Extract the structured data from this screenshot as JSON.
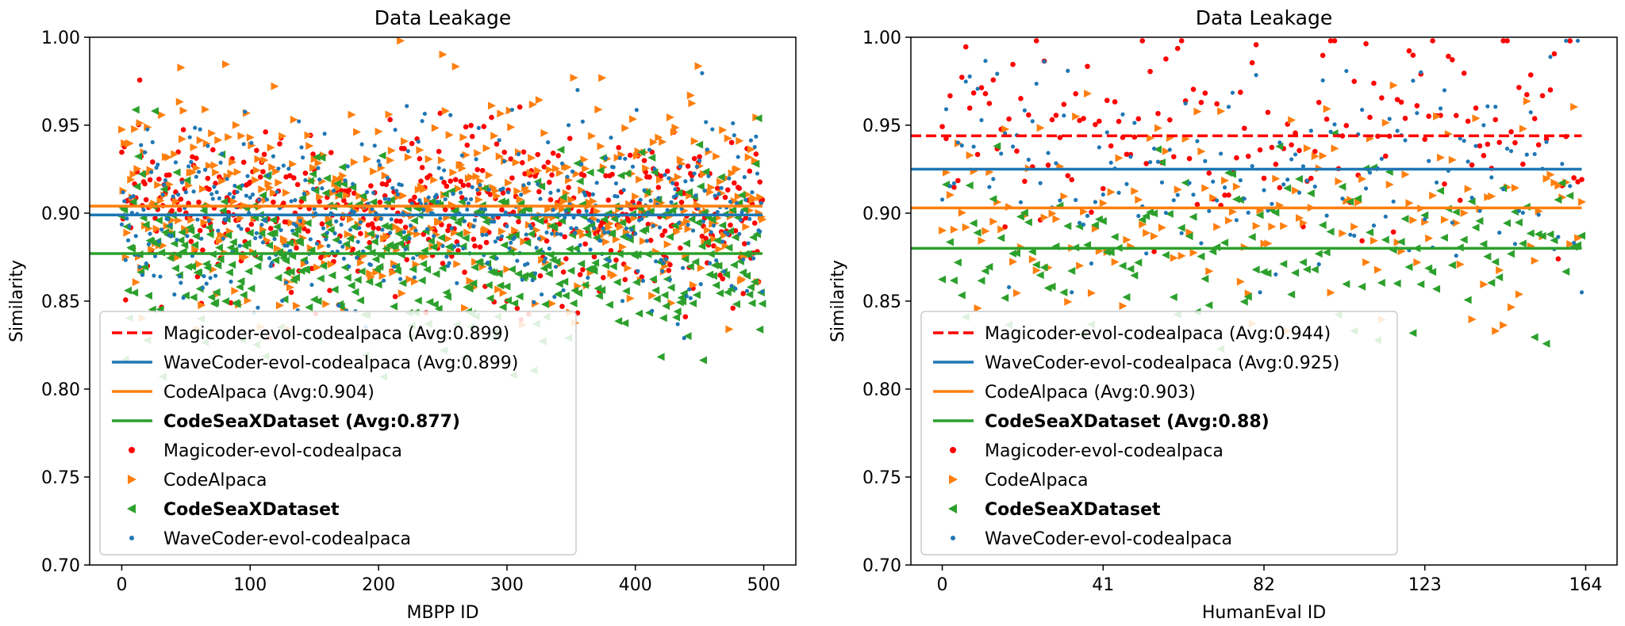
{
  "colors": {
    "magicoder": "#ff0000",
    "wavecoder": "#1f77b4",
    "codealpaca": "#ff7f0e",
    "codeseax": "#2ca02c"
  },
  "chart_data": [
    {
      "type": "scatter",
      "title": "Data Leakage",
      "xlabel": "MBPP ID",
      "ylabel": "Similarity",
      "xlim": [
        -25,
        525
      ],
      "ylim": [
        0.7,
        1.0
      ],
      "xticks": [
        0,
        100,
        200,
        300,
        400,
        500
      ],
      "yticks": [
        0.7,
        0.75,
        0.8,
        0.85,
        0.9,
        0.95,
        1.0
      ],
      "n_points": 500,
      "legend_position": "lower-left",
      "averages": [
        {
          "name": "Magicoder-evol-codealpaca",
          "value": 0.899,
          "label": "Magicoder-evol-codealpaca (Avg:0.899)"
        },
        {
          "name": "WaveCoder-evol-codealpaca",
          "value": 0.899,
          "label": "WaveCoder-evol-codealpaca (Avg:0.899)"
        },
        {
          "name": "CodeAlpaca",
          "value": 0.904,
          "label": "CodeAlpaca (Avg:0.904)"
        },
        {
          "name": "CodeSeaXDataset",
          "value": 0.877,
          "label": "CodeSeaXDataset (Avg:0.877)"
        }
      ],
      "scatter_series": [
        {
          "name": "Magicoder-evol-codealpaca",
          "label": "Magicoder-evol-codealpaca",
          "mean": 0.899,
          "spread": 0.025
        },
        {
          "name": "CodeAlpaca",
          "label": "CodeAlpaca",
          "mean": 0.904,
          "spread": 0.03
        },
        {
          "name": "CodeSeaXDataset",
          "label": "CodeSeaXDataset",
          "mean": 0.877,
          "spread": 0.028
        },
        {
          "name": "WaveCoder-evol-codealpaca",
          "label": "WaveCoder-evol-codealpaca",
          "mean": 0.899,
          "spread": 0.025
        }
      ]
    },
    {
      "type": "scatter",
      "title": "Data Leakage",
      "xlabel": "HumanEval ID",
      "ylabel": "Similarity",
      "xlim": [
        -8,
        172
      ],
      "ylim": [
        0.7,
        1.0
      ],
      "xticks": [
        0,
        41,
        82,
        123,
        164
      ],
      "yticks": [
        0.7,
        0.75,
        0.8,
        0.85,
        0.9,
        0.95,
        1.0
      ],
      "n_points": 164,
      "legend_position": "lower-left",
      "averages": [
        {
          "name": "Magicoder-evol-codealpaca",
          "value": 0.944,
          "label": "Magicoder-evol-codealpaca (Avg:0.944)"
        },
        {
          "name": "WaveCoder-evol-codealpaca",
          "value": 0.925,
          "label": "WaveCoder-evol-codealpaca (Avg:0.925)"
        },
        {
          "name": "CodeAlpaca",
          "value": 0.903,
          "label": "CodeAlpaca (Avg:0.903)"
        },
        {
          "name": "CodeSeaXDataset",
          "value": 0.88,
          "label": "CodeSeaXDataset (Avg:0.88)"
        }
      ],
      "scatter_series": [
        {
          "name": "Magicoder-evol-codealpaca",
          "label": "Magicoder-evol-codealpaca",
          "mean": 0.944,
          "spread": 0.03
        },
        {
          "name": "CodeAlpaca",
          "label": "CodeAlpaca",
          "mean": 0.903,
          "spread": 0.03
        },
        {
          "name": "CodeSeaXDataset",
          "label": "CodeSeaXDataset",
          "mean": 0.88,
          "spread": 0.025
        },
        {
          "name": "WaveCoder-evol-codealpaca",
          "label": "WaveCoder-evol-codealpaca",
          "mean": 0.925,
          "spread": 0.03
        }
      ]
    }
  ]
}
